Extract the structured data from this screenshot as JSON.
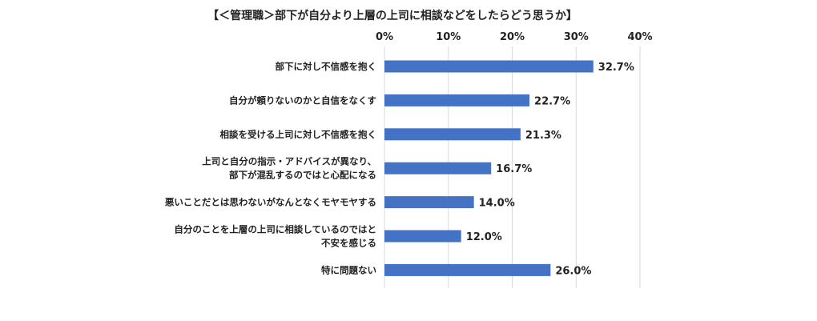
{
  "chart_data": {
    "type": "bar",
    "orientation": "horizontal",
    "title": "【＜管理職＞部下が自分より上層の上司に相談などをしたらどう思うか】",
    "xlabel": "",
    "ylabel": "",
    "xlim": [
      0,
      40
    ],
    "x_ticks": [
      "0%",
      "10%",
      "20%",
      "30%",
      "40%"
    ],
    "x_tick_values": [
      0,
      10,
      20,
      30,
      40
    ],
    "axis_position": "top",
    "grid": true,
    "legend": "none",
    "bar_color": "#4472c4",
    "categories": [
      [
        "部下に対し不信感を抱く"
      ],
      [
        "自分が頼りないのかと自信をなくす"
      ],
      [
        "相談を受ける上司に対し不信感を抱く"
      ],
      [
        "上司と自分の指示・アドバイスが異なり、",
        "部下が混乱するのではと心配になる"
      ],
      [
        "悪いことだとは思わないがなんとなくモヤモヤする"
      ],
      [
        "自分のことを上層の上司に相談しているのではと",
        "不安を感じる"
      ],
      [
        "特に問題ない"
      ]
    ],
    "values": [
      32.7,
      22.7,
      21.3,
      16.7,
      14.0,
      12.0,
      26.0
    ],
    "value_labels": [
      "32.7%",
      "22.7%",
      "21.3%",
      "16.7%",
      "14.0%",
      "12.0%",
      "26.0%"
    ]
  }
}
